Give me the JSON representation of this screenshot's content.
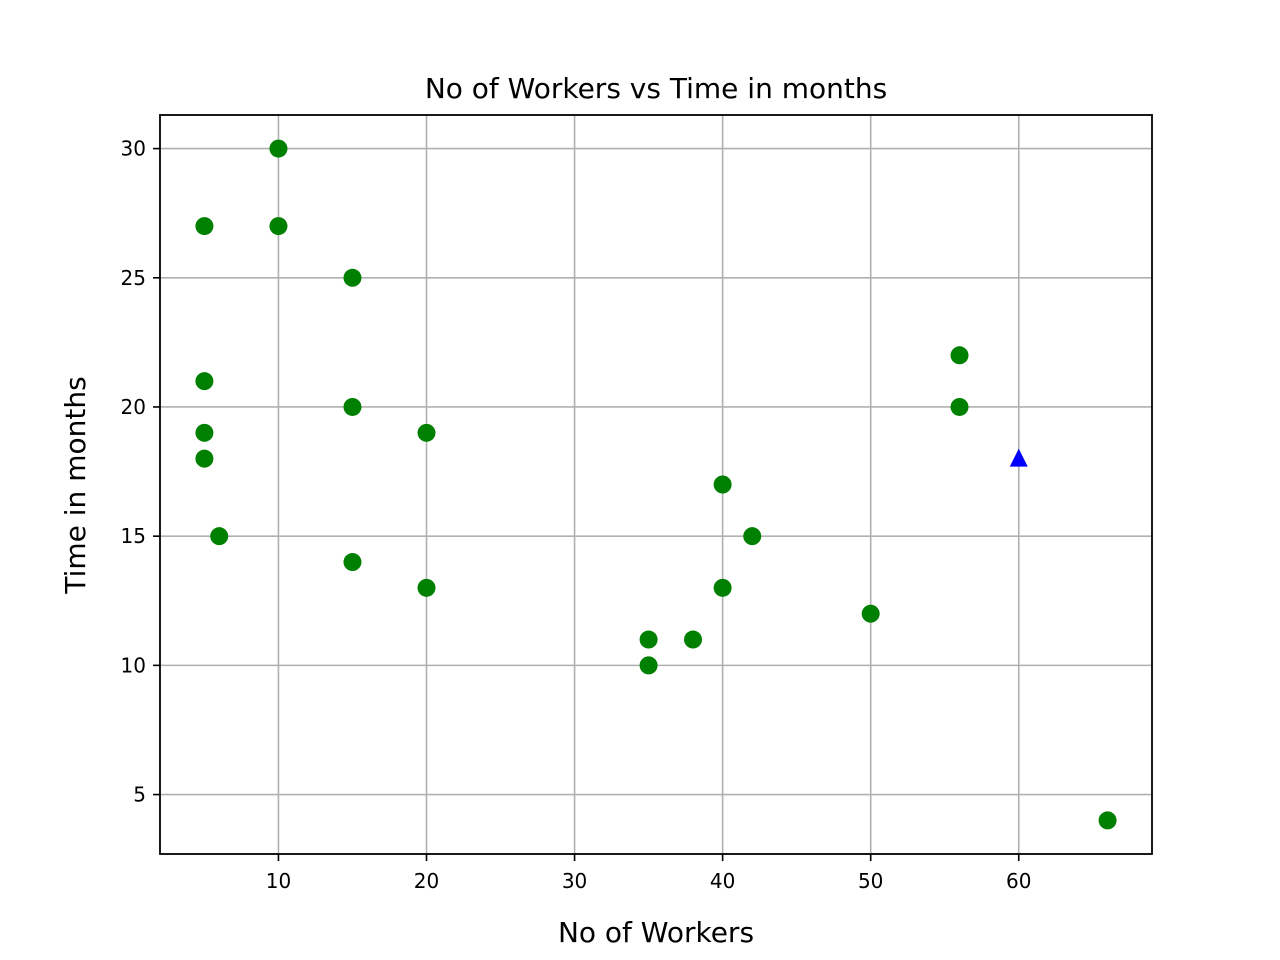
{
  "chart_data": {
    "type": "scatter",
    "title": "No of Workers vs Time in months",
    "xlabel": "No of Workers",
    "ylabel": "Time in months",
    "xlim": [
      2,
      69
    ],
    "ylim": [
      2.7,
      31.3
    ],
    "xticks": [
      10,
      20,
      30,
      40,
      50,
      60
    ],
    "yticks": [
      5,
      10,
      15,
      20,
      25,
      30
    ],
    "grid": true,
    "series": [
      {
        "marker": "circle",
        "color": "#008000",
        "points": [
          {
            "x": 5,
            "y": 27
          },
          {
            "x": 5,
            "y": 21
          },
          {
            "x": 5,
            "y": 19
          },
          {
            "x": 5,
            "y": 18
          },
          {
            "x": 6,
            "y": 15
          },
          {
            "x": 10,
            "y": 30
          },
          {
            "x": 10,
            "y": 27
          },
          {
            "x": 15,
            "y": 25
          },
          {
            "x": 15,
            "y": 20
          },
          {
            "x": 15,
            "y": 14
          },
          {
            "x": 20,
            "y": 19
          },
          {
            "x": 20,
            "y": 13
          },
          {
            "x": 35,
            "y": 11
          },
          {
            "x": 35,
            "y": 10
          },
          {
            "x": 38,
            "y": 11
          },
          {
            "x": 40,
            "y": 17
          },
          {
            "x": 40,
            "y": 13
          },
          {
            "x": 42,
            "y": 15
          },
          {
            "x": 50,
            "y": 12
          },
          {
            "x": 56,
            "y": 22
          },
          {
            "x": 56,
            "y": 20
          },
          {
            "x": 66,
            "y": 4
          }
        ]
      },
      {
        "marker": "triangle",
        "color": "#0000ff",
        "points": [
          {
            "x": 60,
            "y": 18
          }
        ]
      }
    ]
  }
}
